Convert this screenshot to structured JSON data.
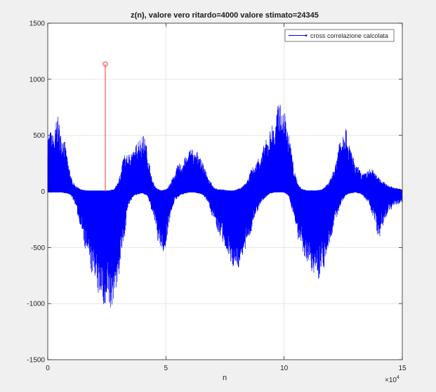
{
  "colors": {
    "figure_bg": "#f0f0f0",
    "axes_bg": "#ffffff",
    "grid": "#e6e6e6",
    "axis": "#262626",
    "series": "#0000ff",
    "marker": "#ff3333"
  },
  "chart_data": {
    "type": "line",
    "title": "z(n), valore vero ritardo=4000 valore stimato=24345",
    "xlabel": "n",
    "ylabel": "",
    "x_exponent": "×10",
    "x_exponent_power": "4",
    "xlim": [
      0,
      150000
    ],
    "ylim": [
      -1500,
      1500
    ],
    "grid": true,
    "legend_position": "top-right",
    "x_ticks": [
      {
        "value": 0,
        "label": "0"
      },
      {
        "value": 50000,
        "label": "5"
      },
      {
        "value": 100000,
        "label": "10"
      },
      {
        "value": 150000,
        "label": "15"
      }
    ],
    "y_ticks": [
      {
        "value": -1500,
        "label": "-1500"
      },
      {
        "value": -1000,
        "label": "-1000"
      },
      {
        "value": -500,
        "label": "-500"
      },
      {
        "value": 0,
        "label": "0"
      },
      {
        "value": 500,
        "label": "500"
      },
      {
        "value": 1000,
        "label": "1000"
      },
      {
        "value": 1500,
        "label": "1500"
      }
    ],
    "series": [
      {
        "name": "cross correlazione calcolata",
        "style": "stem",
        "envelope": {
          "x": [
            0,
            2000,
            4000,
            6000,
            8000,
            10000,
            12000,
            14000,
            16000,
            18000,
            20000,
            22000,
            24000,
            26000,
            28000,
            30000,
            32000,
            34000,
            36000,
            38000,
            40000,
            42000,
            44000,
            46000,
            48000,
            50000,
            52000,
            54000,
            56000,
            58000,
            60000,
            62000,
            64000,
            66000,
            68000,
            70000,
            72000,
            74000,
            76000,
            78000,
            80000,
            82000,
            84000,
            86000,
            88000,
            90000,
            92000,
            94000,
            96000,
            98000,
            100000,
            102000,
            104000,
            106000,
            108000,
            110000,
            112000,
            114000,
            116000,
            118000,
            120000,
            122000,
            124000,
            126000,
            128000,
            130000,
            132000,
            134000,
            136000,
            138000,
            140000,
            142000,
            144000,
            146000,
            148000,
            150000
          ],
          "y_max": [
            580,
            520,
            690,
            560,
            370,
            120,
            50,
            20,
            10,
            5,
            5,
            5,
            5,
            10,
            20,
            100,
            320,
            360,
            380,
            470,
            540,
            420,
            120,
            30,
            10,
            20,
            80,
            200,
            270,
            300,
            400,
            390,
            350,
            260,
            120,
            50,
            20,
            20,
            10,
            5,
            20,
            40,
            80,
            200,
            260,
            350,
            450,
            570,
            640,
            850,
            730,
            560,
            240,
            60,
            20,
            10,
            10,
            10,
            20,
            60,
            130,
            300,
            560,
            600,
            420,
            260,
            200,
            160,
            220,
            190,
            140,
            90,
            60,
            40,
            30,
            20
          ],
          "y_min": [
            -10,
            -10,
            -10,
            -10,
            -20,
            -40,
            -150,
            -350,
            -550,
            -700,
            -850,
            -980,
            -1100,
            -1130,
            -1020,
            -800,
            -500,
            -150,
            -50,
            -30,
            -20,
            -40,
            -180,
            -380,
            -600,
            -520,
            -200,
            -80,
            -40,
            -20,
            -10,
            -10,
            -20,
            -40,
            -110,
            -260,
            -380,
            -480,
            -600,
            -700,
            -720,
            -650,
            -520,
            -380,
            -220,
            -120,
            -60,
            -20,
            -10,
            -5,
            -10,
            -50,
            -220,
            -450,
            -600,
            -690,
            -760,
            -800,
            -750,
            -620,
            -420,
            -260,
            -120,
            -40,
            -20,
            -10,
            -20,
            -60,
            -130,
            -260,
            -440,
            -320,
            -190,
            -150,
            -120,
            -110
          ]
        }
      },
      {
        "name": "",
        "style": "stem-marker",
        "x": [
          24345
        ],
        "y": [
          1135
        ]
      }
    ]
  }
}
